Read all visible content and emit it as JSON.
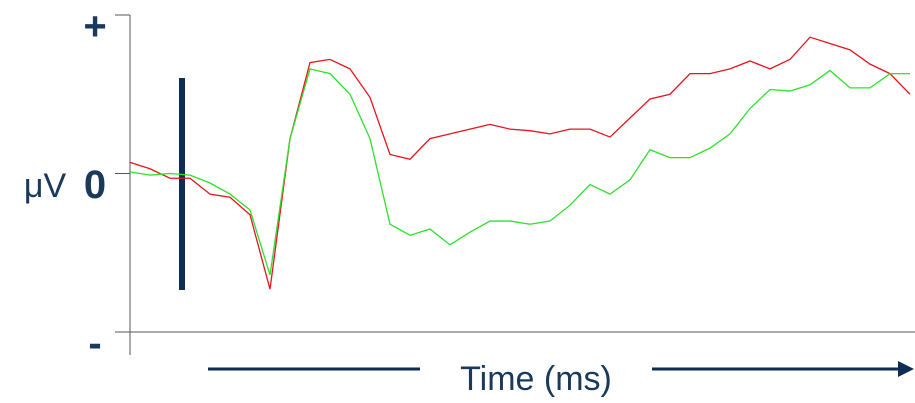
{
  "chart_data": {
    "type": "line",
    "y_label": "μV",
    "x_label": "Time (ms)",
    "categories": [
      null,
      null,
      null,
      null,
      null,
      null,
      null,
      null,
      null,
      null,
      null,
      null,
      null,
      null,
      null,
      null,
      null,
      null,
      null,
      null,
      null,
      null,
      null,
      null,
      null,
      null,
      null,
      null,
      null,
      null,
      null,
      null,
      null,
      null,
      null,
      null,
      null,
      null,
      null,
      null
    ],
    "series": [
      {
        "color": "#e8141b",
        "values": [
          0.07,
          0.03,
          -0.03,
          -0.03,
          -0.13,
          -0.15,
          -0.26,
          -0.73,
          0.22,
          0.7,
          0.72,
          0.66,
          0.48,
          0.12,
          0.09,
          0.22,
          0.25,
          0.28,
          0.31,
          0.28,
          0.27,
          0.25,
          0.28,
          0.28,
          0.23,
          0.35,
          0.47,
          0.5,
          0.63,
          0.63,
          0.66,
          0.71,
          0.66,
          0.72,
          0.86,
          0.82,
          0.78,
          0.69,
          0.63,
          0.5
        ]
      },
      {
        "color": "#2ee02e",
        "values": [
          0.01,
          -0.01,
          0,
          -0.01,
          -0.06,
          -0.13,
          -0.23,
          -0.64,
          0.22,
          0.66,
          0.63,
          0.5,
          0.22,
          -0.32,
          -0.39,
          -0.35,
          -0.45,
          -0.37,
          -0.3,
          -0.3,
          -0.32,
          -0.3,
          -0.2,
          -0.07,
          -0.13,
          -0.04,
          0.15,
          0.1,
          0.1,
          0.16,
          0.25,
          0.41,
          0.53,
          0.52,
          0.56,
          0.65,
          0.54,
          0.54,
          0.63,
          0.63
        ]
      }
    ],
    "ylim": [
      -1,
      1
    ],
    "yticks": [
      {
        "value": -1,
        "label": "-"
      },
      0,
      {
        "value": 1,
        "label": "+"
      }
    ]
  }
}
